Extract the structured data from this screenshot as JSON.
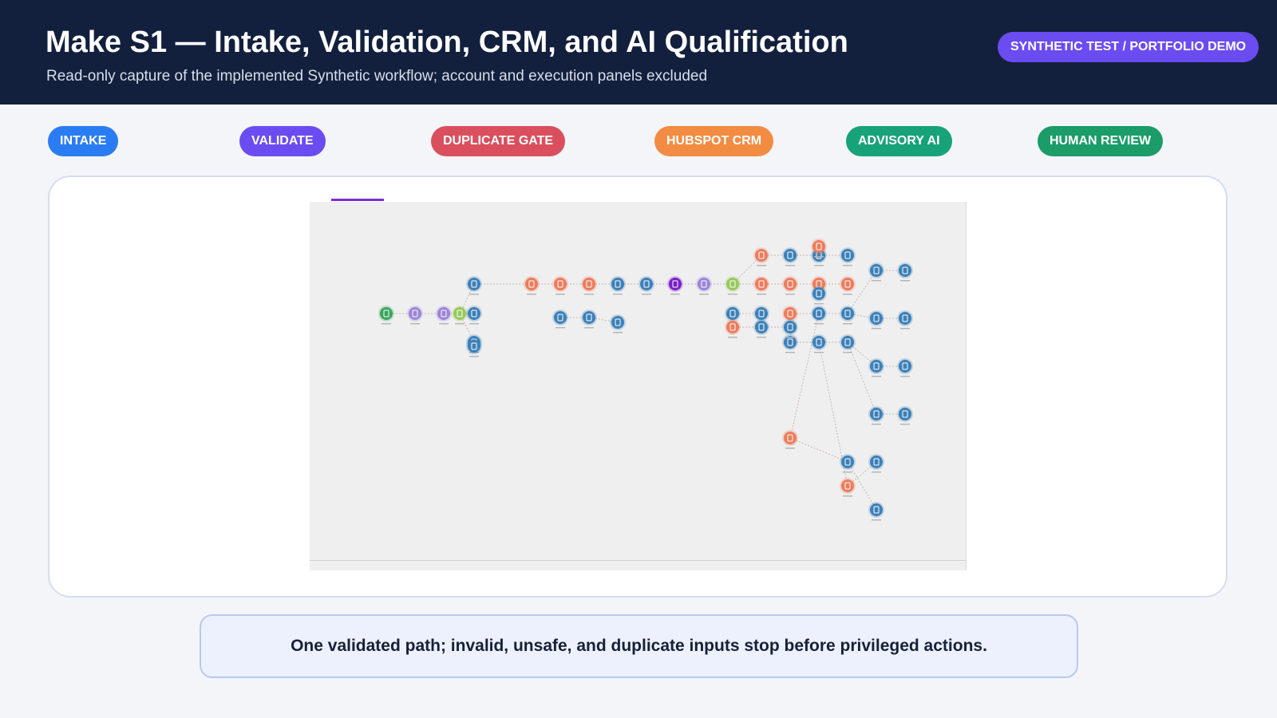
{
  "header": {
    "title": "Make S1 — Intake, Validation, CRM, and AI Qualification",
    "subtitle": "Read-only capture of the implemented Synthetic workflow; account and execution panels excluded",
    "badge": "SYNTHETIC TEST / PORTFOLIO DEMO"
  },
  "stages": [
    {
      "label": "INTAKE",
      "color": "#2a7cf2"
    },
    {
      "label": "VALIDATE",
      "color": "#6b4cf0"
    },
    {
      "label": "DUPLICATE GATE",
      "color": "#d94f5e"
    },
    {
      "label": "HUBSPOT CRM",
      "color": "#f28c42"
    },
    {
      "label": "ADVISORY AI",
      "color": "#18a27a"
    },
    {
      "label": "HUMAN REVIEW",
      "color": "#1b9c68"
    }
  ],
  "workflow": {
    "module_colors": {
      "webhook": "#3aa35e",
      "tools": "#9b84d8",
      "router": "#97c95a",
      "data_store": "#3d80b8",
      "hubspot": "#ec7c5c",
      "ai": "#7a20c8"
    },
    "modules": [
      {
        "type": "webhook",
        "icon": "webhook-icon"
      },
      {
        "type": "tools",
        "icon": "tools-icon"
      },
      {
        "type": "tools",
        "icon": "tools-icon"
      },
      {
        "type": "router",
        "icon": "router-icon"
      },
      {
        "type": "data_store",
        "icon": "database-icon"
      },
      {
        "type": "data_store",
        "icon": "database-icon"
      },
      {
        "type": "data_store",
        "icon": "database-icon"
      },
      {
        "type": "data_store",
        "icon": "database-icon"
      },
      {
        "type": "hubspot",
        "icon": "hubspot-icon"
      },
      {
        "type": "hubspot",
        "icon": "hubspot-icon"
      },
      {
        "type": "hubspot",
        "icon": "hubspot-icon"
      },
      {
        "type": "data_store",
        "icon": "database-icon"
      },
      {
        "type": "data_store",
        "icon": "database-icon"
      },
      {
        "type": "ai",
        "icon": "ai-icon"
      },
      {
        "type": "tools",
        "icon": "json-icon"
      },
      {
        "type": "router",
        "icon": "router-icon"
      },
      {
        "type": "data_store",
        "icon": "database-icon"
      },
      {
        "type": "data_store",
        "icon": "database-icon"
      },
      {
        "type": "data_store",
        "icon": "database-icon"
      },
      {
        "type": "hubspot",
        "icon": "hubspot-icon"
      },
      {
        "type": "hubspot",
        "icon": "hubspot-icon"
      },
      {
        "type": "data_store",
        "icon": "database-icon"
      },
      {
        "type": "hubspot",
        "icon": "hubspot-icon"
      },
      {
        "type": "data_store",
        "icon": "database-icon"
      },
      {
        "type": "hubspot",
        "icon": "hubspot-icon"
      },
      {
        "type": "data_store",
        "icon": "database-icon"
      },
      {
        "type": "data_store",
        "icon": "database-icon"
      },
      {
        "type": "hubspot",
        "icon": "hubspot-icon"
      },
      {
        "type": "data_store",
        "icon": "database-icon"
      },
      {
        "type": "data_store",
        "icon": "database-icon"
      },
      {
        "type": "hubspot",
        "icon": "hubspot-icon"
      },
      {
        "type": "data_store",
        "icon": "database-icon"
      },
      {
        "type": "data_store",
        "icon": "database-icon"
      },
      {
        "type": "hubspot",
        "icon": "hubspot-icon"
      },
      {
        "type": "data_store",
        "icon": "database-icon"
      },
      {
        "type": "data_store",
        "icon": "database-icon"
      },
      {
        "type": "data_store",
        "icon": "database-icon"
      },
      {
        "type": "hubspot",
        "icon": "hubspot-icon"
      },
      {
        "type": "data_store",
        "icon": "database-icon"
      },
      {
        "type": "data_store",
        "icon": "database-icon"
      },
      {
        "type": "data_store",
        "icon": "database-icon"
      },
      {
        "type": "data_store",
        "icon": "database-icon"
      },
      {
        "type": "data_store",
        "icon": "database-icon"
      },
      {
        "type": "data_store",
        "icon": "database-icon"
      },
      {
        "type": "data_store",
        "icon": "database-icon"
      },
      {
        "type": "data_store",
        "icon": "database-icon"
      },
      {
        "type": "data_store",
        "icon": "database-icon"
      },
      {
        "type": "data_store",
        "icon": "database-icon"
      },
      {
        "type": "hubspot",
        "icon": "hubspot-icon"
      },
      {
        "type": "data_store",
        "icon": "database-icon"
      },
      {
        "type": "hubspot",
        "icon": "hubspot-icon"
      },
      {
        "type": "data_store",
        "icon": "database-icon"
      },
      {
        "type": "data_store",
        "icon": "database-icon"
      }
    ]
  },
  "callout": "One validated path; invalid, unsafe, and duplicate inputs stop before privileged actions."
}
